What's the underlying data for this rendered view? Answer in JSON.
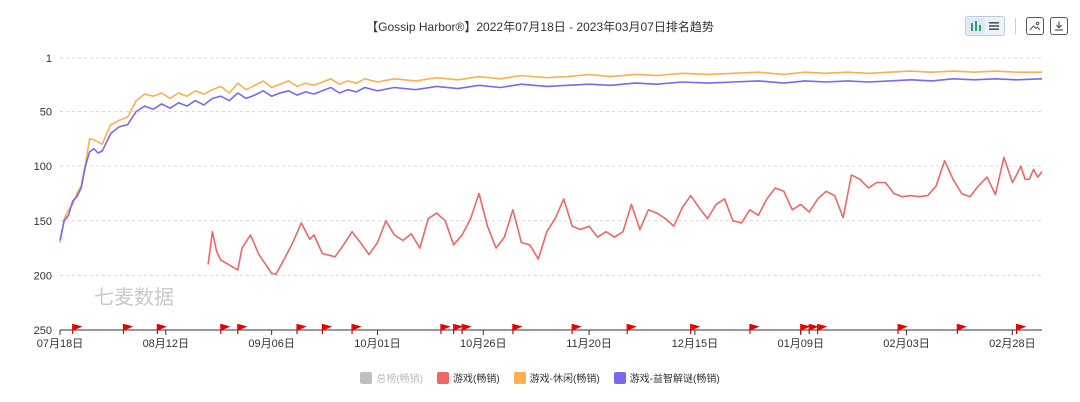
{
  "toolbar": {
    "icons": [
      "bar-chart-icon",
      "list-icon",
      "image-icon",
      "download-icon"
    ]
  },
  "watermark": "七麦数据",
  "chart_data": {
    "type": "line",
    "title": "【Gossip Harbor®】2022年07月18日 - 2023年03月07日排名趋势",
    "xlabel": "",
    "ylabel": "",
    "y_inverted": true,
    "ylim": [
      1,
      250
    ],
    "yticks": [
      "1",
      "50",
      "100",
      "150",
      "200",
      "250"
    ],
    "xticks": [
      "07月18日",
      "08月12日",
      "09月06日",
      "10月01日",
      "10月26日",
      "11月20日",
      "12月15日",
      "01月09日",
      "02月03日",
      "02月28日"
    ],
    "xlim": [
      "2022-07-18",
      "2023-03-07"
    ],
    "grid": "horizontal-dashed",
    "legend_position": "bottom-center",
    "series": [
      {
        "name": "总榜(畅销)",
        "color": "#bfbfbf",
        "visible": false,
        "points": []
      },
      {
        "name": "游戏(畅销)",
        "color": "#ee6666",
        "visible": true,
        "points": [
          [
            "2022-08-22",
            190
          ],
          [
            "2022-08-23",
            160
          ],
          [
            "2022-08-24",
            178
          ],
          [
            "2022-08-25",
            186
          ],
          [
            "2022-08-29",
            195
          ],
          [
            "2022-08-30",
            175
          ],
          [
            "2022-09-01",
            163
          ],
          [
            "2022-09-03",
            181
          ],
          [
            "2022-09-06",
            198
          ],
          [
            "2022-09-07",
            199
          ],
          [
            "2022-09-09",
            185
          ],
          [
            "2022-09-11",
            170
          ],
          [
            "2022-09-13",
            152
          ],
          [
            "2022-09-15",
            167
          ],
          [
            "2022-09-16",
            163
          ],
          [
            "2022-09-18",
            180
          ],
          [
            "2022-09-21",
            183
          ],
          [
            "2022-09-23",
            172
          ],
          [
            "2022-09-25",
            160
          ],
          [
            "2022-09-27",
            170
          ],
          [
            "2022-09-29",
            181
          ],
          [
            "2022-10-01",
            170
          ],
          [
            "2022-10-03",
            150
          ],
          [
            "2022-10-05",
            163
          ],
          [
            "2022-10-07",
            168
          ],
          [
            "2022-10-09",
            162
          ],
          [
            "2022-10-11",
            175
          ],
          [
            "2022-10-13",
            148
          ],
          [
            "2022-10-15",
            143
          ],
          [
            "2022-10-17",
            150
          ],
          [
            "2022-10-19",
            172
          ],
          [
            "2022-10-21",
            163
          ],
          [
            "2022-10-23",
            148
          ],
          [
            "2022-10-25",
            125
          ],
          [
            "2022-10-27",
            155
          ],
          [
            "2022-10-29",
            175
          ],
          [
            "2022-10-31",
            165
          ],
          [
            "2022-11-02",
            140
          ],
          [
            "2022-11-04",
            170
          ],
          [
            "2022-11-06",
            172
          ],
          [
            "2022-11-08",
            185
          ],
          [
            "2022-11-10",
            160
          ],
          [
            "2022-11-12",
            148
          ],
          [
            "2022-11-14",
            130
          ],
          [
            "2022-11-16",
            155
          ],
          [
            "2022-11-18",
            158
          ],
          [
            "2022-11-20",
            155
          ],
          [
            "2022-11-22",
            165
          ],
          [
            "2022-11-24",
            160
          ],
          [
            "2022-11-26",
            165
          ],
          [
            "2022-11-28",
            160
          ],
          [
            "2022-11-30",
            135
          ],
          [
            "2022-12-02",
            158
          ],
          [
            "2022-12-04",
            140
          ],
          [
            "2022-12-06",
            143
          ],
          [
            "2022-12-08",
            148
          ],
          [
            "2022-12-10",
            155
          ],
          [
            "2022-12-12",
            138
          ],
          [
            "2022-12-14",
            127
          ],
          [
            "2022-12-16",
            138
          ],
          [
            "2022-12-18",
            148
          ],
          [
            "2022-12-20",
            135
          ],
          [
            "2022-12-22",
            130
          ],
          [
            "2022-12-24",
            150
          ],
          [
            "2022-12-26",
            152
          ],
          [
            "2022-12-28",
            140
          ],
          [
            "2022-12-30",
            145
          ],
          [
            "2023-01-01",
            130
          ],
          [
            "2023-01-03",
            120
          ],
          [
            "2023-01-05",
            123
          ],
          [
            "2023-01-07",
            140
          ],
          [
            "2023-01-09",
            135
          ],
          [
            "2023-01-11",
            142
          ],
          [
            "2023-01-13",
            130
          ],
          [
            "2023-01-15",
            123
          ],
          [
            "2023-01-17",
            127
          ],
          [
            "2023-01-19",
            147
          ],
          [
            "2023-01-21",
            108
          ],
          [
            "2023-01-23",
            112
          ],
          [
            "2023-01-25",
            120
          ],
          [
            "2023-01-27",
            115
          ],
          [
            "2023-01-29",
            115
          ],
          [
            "2023-01-31",
            125
          ],
          [
            "2023-02-02",
            128
          ],
          [
            "2023-02-04",
            127
          ],
          [
            "2023-02-06",
            128
          ],
          [
            "2023-02-08",
            127
          ],
          [
            "2023-02-10",
            118
          ],
          [
            "2023-02-12",
            95
          ],
          [
            "2023-02-14",
            112
          ],
          [
            "2023-02-16",
            125
          ],
          [
            "2023-02-18",
            128
          ],
          [
            "2023-02-20",
            118
          ],
          [
            "2023-02-22",
            110
          ],
          [
            "2023-02-24",
            126
          ],
          [
            "2023-02-26",
            92
          ],
          [
            "2023-02-28",
            115
          ],
          [
            "2023-03-01",
            108
          ],
          [
            "2023-03-02",
            100
          ],
          [
            "2023-03-03",
            112
          ],
          [
            "2023-03-04",
            112
          ],
          [
            "2023-03-05",
            103
          ],
          [
            "2023-03-06",
            110
          ],
          [
            "2023-03-07",
            105
          ]
        ]
      },
      {
        "name": "游戏-休闲(畅销)",
        "color": "#fab04f",
        "visible": true,
        "points": [
          [
            "2022-07-18",
            170
          ],
          [
            "2022-07-19",
            148
          ],
          [
            "2022-07-20",
            140
          ],
          [
            "2022-07-21",
            135
          ],
          [
            "2022-07-22",
            125
          ],
          [
            "2022-07-23",
            118
          ],
          [
            "2022-07-24",
            98
          ],
          [
            "2022-07-25",
            75
          ],
          [
            "2022-07-26",
            76
          ],
          [
            "2022-07-27",
            78
          ],
          [
            "2022-07-28",
            80
          ],
          [
            "2022-07-29",
            70
          ],
          [
            "2022-07-30",
            62
          ],
          [
            "2022-08-01",
            58
          ],
          [
            "2022-08-03",
            55
          ],
          [
            "2022-08-05",
            40
          ],
          [
            "2022-08-07",
            34
          ],
          [
            "2022-08-09",
            36
          ],
          [
            "2022-08-11",
            33
          ],
          [
            "2022-08-13",
            38
          ],
          [
            "2022-08-15",
            33
          ],
          [
            "2022-08-17",
            36
          ],
          [
            "2022-08-19",
            31
          ],
          [
            "2022-08-21",
            34
          ],
          [
            "2022-08-23",
            30
          ],
          [
            "2022-08-25",
            27
          ],
          [
            "2022-08-27",
            33
          ],
          [
            "2022-08-29",
            24
          ],
          [
            "2022-08-31",
            30
          ],
          [
            "2022-09-02",
            26
          ],
          [
            "2022-09-04",
            22
          ],
          [
            "2022-09-06",
            28
          ],
          [
            "2022-09-08",
            25
          ],
          [
            "2022-09-10",
            22
          ],
          [
            "2022-09-12",
            27
          ],
          [
            "2022-09-14",
            24
          ],
          [
            "2022-09-16",
            26
          ],
          [
            "2022-09-18",
            23
          ],
          [
            "2022-09-20",
            20
          ],
          [
            "2022-09-22",
            25
          ],
          [
            "2022-09-24",
            22
          ],
          [
            "2022-09-26",
            24
          ],
          [
            "2022-09-28",
            20
          ],
          [
            "2022-10-01",
            23
          ],
          [
            "2022-10-05",
            20
          ],
          [
            "2022-10-10",
            22
          ],
          [
            "2022-10-15",
            19
          ],
          [
            "2022-10-20",
            21
          ],
          [
            "2022-10-25",
            18
          ],
          [
            "2022-10-30",
            20
          ],
          [
            "2022-11-04",
            17
          ],
          [
            "2022-11-10",
            19
          ],
          [
            "2022-11-15",
            18
          ],
          [
            "2022-11-20",
            16
          ],
          [
            "2022-11-25",
            18
          ],
          [
            "2022-12-01",
            16
          ],
          [
            "2022-12-06",
            17
          ],
          [
            "2022-12-12",
            15
          ],
          [
            "2022-12-18",
            16
          ],
          [
            "2022-12-24",
            15
          ],
          [
            "2022-12-30",
            14
          ],
          [
            "2023-01-05",
            16
          ],
          [
            "2023-01-10",
            14
          ],
          [
            "2023-01-15",
            15
          ],
          [
            "2023-01-20",
            14
          ],
          [
            "2023-01-25",
            15
          ],
          [
            "2023-01-30",
            14
          ],
          [
            "2023-02-04",
            13
          ],
          [
            "2023-02-09",
            14
          ],
          [
            "2023-02-14",
            13
          ],
          [
            "2023-02-19",
            14
          ],
          [
            "2023-02-24",
            13
          ],
          [
            "2023-03-01",
            14
          ],
          [
            "2023-03-07",
            14
          ]
        ]
      },
      {
        "name": "游戏-益智解谜(畅销)",
        "color": "#7b68ee",
        "visible": true,
        "points": [
          [
            "2022-07-18",
            168
          ],
          [
            "2022-07-19",
            150
          ],
          [
            "2022-07-20",
            145
          ],
          [
            "2022-07-21",
            132
          ],
          [
            "2022-07-22",
            128
          ],
          [
            "2022-07-23",
            120
          ],
          [
            "2022-07-24",
            100
          ],
          [
            "2022-07-25",
            87
          ],
          [
            "2022-07-26",
            84
          ],
          [
            "2022-07-27",
            88
          ],
          [
            "2022-07-28",
            86
          ],
          [
            "2022-07-29",
            78
          ],
          [
            "2022-07-30",
            70
          ],
          [
            "2022-08-01",
            64
          ],
          [
            "2022-08-03",
            62
          ],
          [
            "2022-08-05",
            50
          ],
          [
            "2022-08-07",
            45
          ],
          [
            "2022-08-09",
            48
          ],
          [
            "2022-08-11",
            43
          ],
          [
            "2022-08-13",
            47
          ],
          [
            "2022-08-15",
            42
          ],
          [
            "2022-08-17",
            45
          ],
          [
            "2022-08-19",
            40
          ],
          [
            "2022-08-21",
            44
          ],
          [
            "2022-08-23",
            38
          ],
          [
            "2022-08-25",
            36
          ],
          [
            "2022-08-27",
            40
          ],
          [
            "2022-08-29",
            33
          ],
          [
            "2022-08-31",
            38
          ],
          [
            "2022-09-02",
            35
          ],
          [
            "2022-09-04",
            31
          ],
          [
            "2022-09-06",
            36
          ],
          [
            "2022-09-08",
            33
          ],
          [
            "2022-09-10",
            31
          ],
          [
            "2022-09-12",
            35
          ],
          [
            "2022-09-14",
            32
          ],
          [
            "2022-09-16",
            34
          ],
          [
            "2022-09-18",
            31
          ],
          [
            "2022-09-20",
            28
          ],
          [
            "2022-09-22",
            33
          ],
          [
            "2022-09-24",
            30
          ],
          [
            "2022-09-26",
            32
          ],
          [
            "2022-09-28",
            28
          ],
          [
            "2022-10-01",
            31
          ],
          [
            "2022-10-05",
            28
          ],
          [
            "2022-10-10",
            30
          ],
          [
            "2022-10-15",
            27
          ],
          [
            "2022-10-20",
            29
          ],
          [
            "2022-10-25",
            26
          ],
          [
            "2022-10-30",
            28
          ],
          [
            "2022-11-04",
            25
          ],
          [
            "2022-11-10",
            27
          ],
          [
            "2022-11-15",
            26
          ],
          [
            "2022-11-20",
            25
          ],
          [
            "2022-11-25",
            26
          ],
          [
            "2022-12-01",
            24
          ],
          [
            "2022-12-06",
            25
          ],
          [
            "2022-12-12",
            23
          ],
          [
            "2022-12-18",
            24
          ],
          [
            "2022-12-24",
            23
          ],
          [
            "2022-12-30",
            22
          ],
          [
            "2023-01-05",
            24
          ],
          [
            "2023-01-10",
            22
          ],
          [
            "2023-01-15",
            23
          ],
          [
            "2023-01-20",
            22
          ],
          [
            "2023-01-25",
            23
          ],
          [
            "2023-01-30",
            22
          ],
          [
            "2023-02-04",
            21
          ],
          [
            "2023-02-09",
            22
          ],
          [
            "2023-02-14",
            20
          ],
          [
            "2023-02-19",
            21
          ],
          [
            "2023-02-24",
            20
          ],
          [
            "2023-03-01",
            21
          ],
          [
            "2023-03-07",
            20
          ]
        ]
      }
    ],
    "event_flags": [
      "2022-07-21",
      "2022-08-02",
      "2022-08-10",
      "2022-08-25",
      "2022-08-29",
      "2022-09-12",
      "2022-09-18",
      "2022-09-25",
      "2022-10-16",
      "2022-10-19",
      "2022-10-21",
      "2022-11-02",
      "2022-11-16",
      "2022-11-29",
      "2022-12-14",
      "2022-12-28",
      "2023-01-09",
      "2023-01-11",
      "2023-01-13",
      "2023-02-01",
      "2023-02-15",
      "2023-03-01"
    ]
  }
}
